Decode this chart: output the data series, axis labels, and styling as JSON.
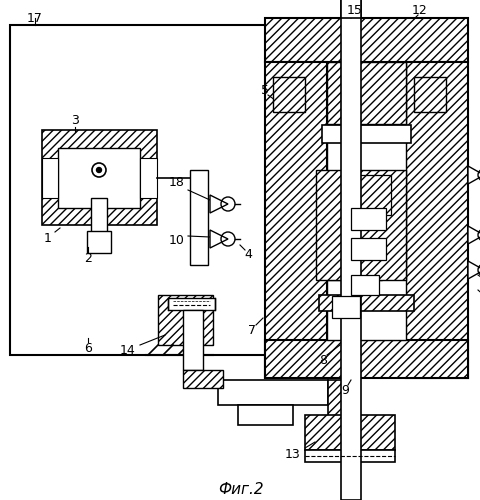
{
  "title": "Фиг.2",
  "bg_color": "#ffffff",
  "fig_w": 4.81,
  "fig_h": 5.0,
  "dpi": 100
}
